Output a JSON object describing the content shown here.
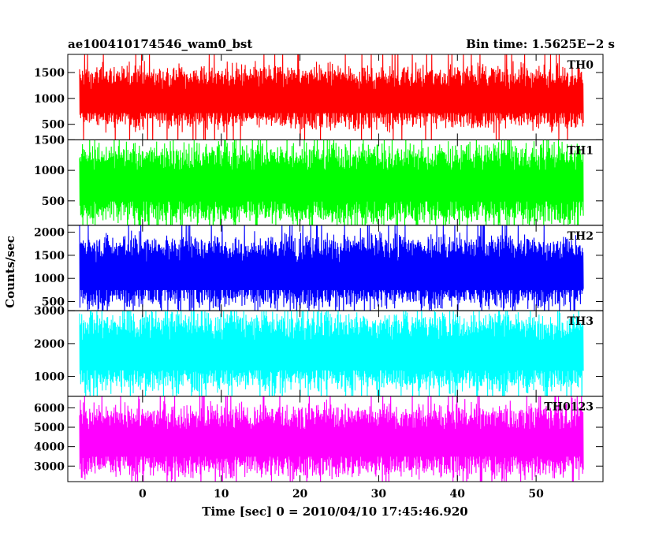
{
  "chart_data": {
    "type": "line",
    "title_left": "ae100410174546_wam0_bst",
    "title_right": "Bin time: 1.5625E−2 s",
    "xlabel": "Time [sec] 0 = 2010/04/10 17:45:46.920",
    "ylabel": "Counts/sec",
    "xlim": [
      -9.5,
      58.5
    ],
    "xticks": [
      0,
      10,
      20,
      30,
      40,
      50
    ],
    "x_data_range": [
      -8,
      56
    ],
    "grid": false,
    "panels": [
      {
        "name": "TH0",
        "color": "#ff0000",
        "ylim": [
          200,
          1850
        ],
        "yticks": [
          500,
          1000,
          1500
        ],
        "mean": 950,
        "low": 600,
        "high": 1450
      },
      {
        "name": "TH1",
        "color": "#00ff00",
        "ylim": [
          100,
          1500
        ],
        "yticks": [
          500,
          1000,
          1500
        ],
        "mean": 750,
        "low": 300,
        "high": 1250
      },
      {
        "name": "TH2",
        "color": "#0000ff",
        "ylim": [
          300,
          2150
        ],
        "yticks": [
          500,
          1000,
          1500,
          2000
        ],
        "mean": 1050,
        "low": 600,
        "high": 1700
      },
      {
        "name": "TH3",
        "color": "#00ffff",
        "ylim": [
          400,
          3000
        ],
        "yticks": [
          1000,
          2000,
          3000
        ],
        "mean": 1650,
        "low": 900,
        "high": 2600
      },
      {
        "name": "TH0123",
        "color": "#ff00ff",
        "ylim": [
          2200,
          6600
        ],
        "yticks": [
          3000,
          4000,
          5000,
          6000
        ],
        "mean": 4200,
        "low": 3000,
        "high": 5600
      }
    ]
  }
}
